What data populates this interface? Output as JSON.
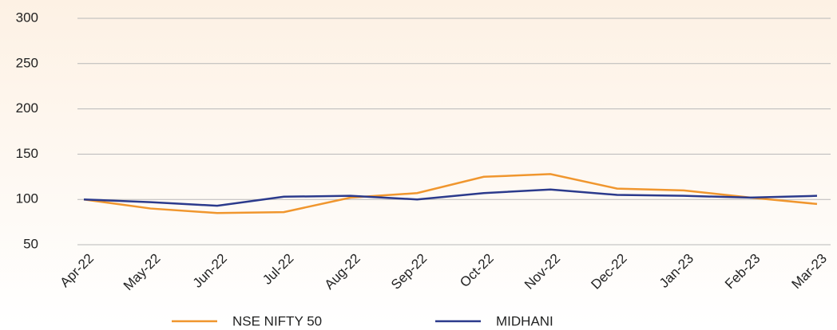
{
  "chart_data": {
    "type": "line",
    "categories": [
      "Apr-22",
      "May-22",
      "Jun-22",
      "Jul-22",
      "Aug-22",
      "Sep-22",
      "Oct-22",
      "Nov-22",
      "Dec-22",
      "Jan-23",
      "Feb-23",
      "Mar-23"
    ],
    "series": [
      {
        "name": "NSE NIFTY 50",
        "color": "#f0962e",
        "values": [
          100,
          90,
          85,
          86,
          102,
          107,
          125,
          128,
          112,
          110,
          102,
          95
        ]
      },
      {
        "name": "MIDHANI",
        "color": "#2b3a8c",
        "values": [
          100,
          97,
          93,
          103,
          104,
          100,
          107,
          111,
          105,
          104,
          102,
          104
        ]
      }
    ],
    "ylim": [
      50,
      300
    ],
    "yticks": [
      50,
      100,
      150,
      200,
      250,
      300
    ],
    "grid": true,
    "legend": "bottom"
  }
}
